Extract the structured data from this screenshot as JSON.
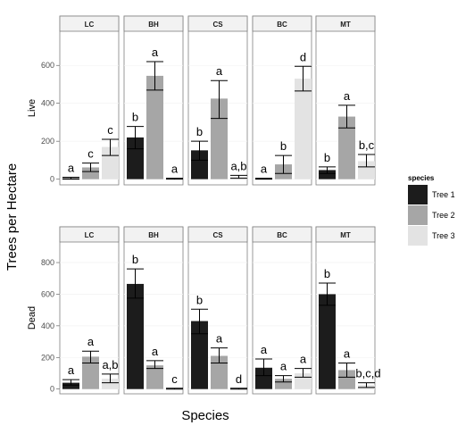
{
  "chart_data": {
    "type": "bar",
    "ylabel": "Trees per Hectare",
    "xlabel": "Species",
    "facet_columns": [
      "LC",
      "BH",
      "CS",
      "BC",
      "MT"
    ],
    "facet_rows": [
      {
        "label": "Live",
        "ylim": [
          -30,
          780
        ],
        "ticks": [
          0,
          200,
          400,
          600
        ]
      },
      {
        "label": "Dead",
        "ylim": [
          -30,
          930
        ],
        "ticks": [
          0,
          200,
          400,
          600,
          800
        ]
      }
    ],
    "legend": {
      "title": "species",
      "position": "right",
      "entries": [
        {
          "label": "Tree 1",
          "color": "#1c1c1c"
        },
        {
          "label": "Tree 2",
          "color": "#a6a6a6"
        },
        {
          "label": "Tree 3",
          "color": "#e3e3e3"
        }
      ]
    },
    "series": [
      "Tree 1",
      "Tree 2",
      "Tree 3"
    ],
    "panels": [
      {
        "row": "Live",
        "col": "LC",
        "values": [
          5,
          62,
          170
        ],
        "lower": [
          0,
          40,
          125
        ],
        "upper": [
          10,
          85,
          210
        ],
        "labels": [
          "a",
          "c",
          "c"
        ]
      },
      {
        "row": "Live",
        "col": "BH",
        "values": [
          220,
          545,
          3
        ],
        "lower": [
          160,
          470,
          0
        ],
        "upper": [
          278,
          620,
          5
        ],
        "labels": [
          "b",
          "a",
          "a"
        ]
      },
      {
        "row": "Live",
        "col": "CS",
        "values": [
          152,
          425,
          12
        ],
        "lower": [
          100,
          320,
          5
        ],
        "upper": [
          200,
          520,
          20
        ],
        "labels": [
          "b",
          "a",
          "a,b"
        ]
      },
      {
        "row": "Live",
        "col": "BC",
        "values": [
          3,
          78,
          530
        ],
        "lower": [
          0,
          30,
          465
        ],
        "upper": [
          5,
          125,
          595
        ],
        "labels": [
          "a",
          "b",
          "d"
        ]
      },
      {
        "row": "Live",
        "col": "MT",
        "values": [
          48,
          330,
          95
        ],
        "lower": [
          30,
          270,
          65
        ],
        "upper": [
          65,
          390,
          130
        ],
        "labels": [
          "b",
          "a",
          "b,c"
        ]
      },
      {
        "row": "Dead",
        "col": "LC",
        "values": [
          40,
          205,
          65
        ],
        "lower": [
          25,
          165,
          40
        ],
        "upper": [
          60,
          240,
          95
        ],
        "labels": [
          "a",
          "a",
          "a,b"
        ]
      },
      {
        "row": "Dead",
        "col": "BH",
        "values": [
          665,
          150,
          3
        ],
        "lower": [
          575,
          130,
          0
        ],
        "upper": [
          760,
          180,
          5
        ],
        "labels": [
          "b",
          "a",
          "c"
        ]
      },
      {
        "row": "Dead",
        "col": "CS",
        "values": [
          430,
          210,
          3
        ],
        "lower": [
          350,
          165,
          0
        ],
        "upper": [
          505,
          260,
          5
        ],
        "labels": [
          "b",
          "a",
          "d"
        ]
      },
      {
        "row": "Dead",
        "col": "BC",
        "values": [
          135,
          65,
          100
        ],
        "lower": [
          85,
          45,
          75
        ],
        "upper": [
          190,
          85,
          130
        ],
        "labels": [
          "a",
          "a",
          "a"
        ]
      },
      {
        "row": "Dead",
        "col": "MT",
        "values": [
          600,
          120,
          25
        ],
        "lower": [
          530,
          75,
          10
        ],
        "upper": [
          670,
          165,
          40
        ],
        "labels": [
          "b",
          "a",
          "b,c,d"
        ]
      }
    ]
  }
}
